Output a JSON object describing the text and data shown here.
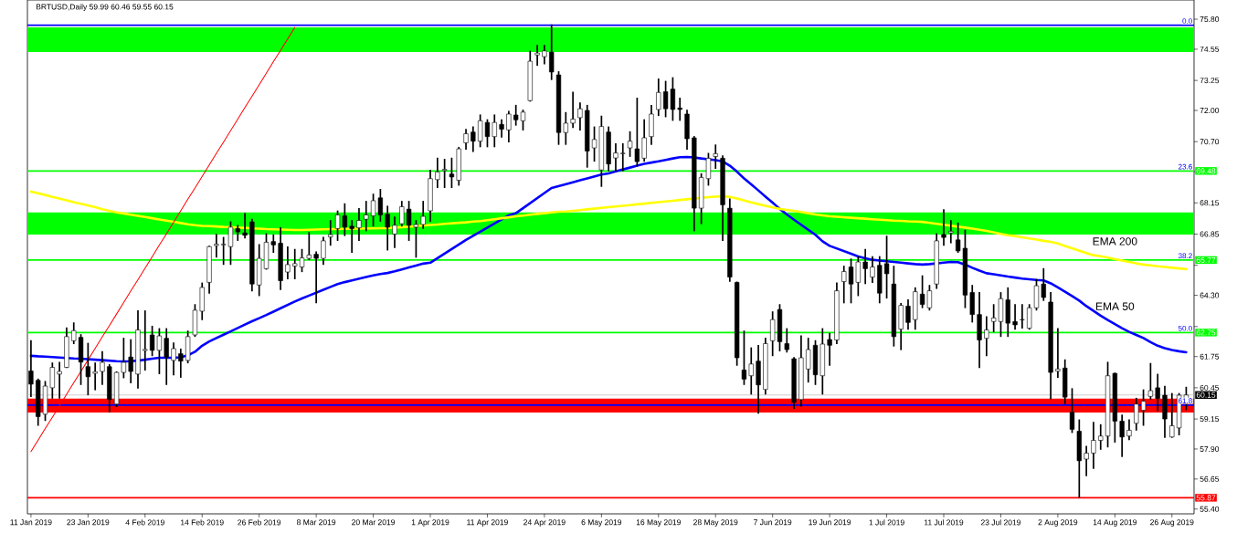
{
  "chart_data": {
    "type": "candlestick",
    "title": "BRTUSD,Daily  59.99 60.46 59.55 60.15",
    "categories": [
      "11 Jan 2019",
      null,
      null,
      null,
      null,
      null,
      null,
      null,
      "23 Jan 2019",
      null,
      null,
      null,
      null,
      null,
      null,
      null,
      "4 Feb 2019",
      null,
      null,
      null,
      null,
      null,
      null,
      null,
      "14 Feb 2019",
      null,
      null,
      null,
      null,
      null,
      null,
      null,
      "26 Feb 2019",
      null,
      null,
      null,
      null,
      null,
      null,
      null,
      "8 Mar 2019",
      null,
      null,
      null,
      null,
      null,
      null,
      null,
      "20 Mar 2019",
      null,
      null,
      null,
      null,
      null,
      null,
      null,
      "1 Apr 2019",
      null,
      null,
      null,
      null,
      null,
      null,
      null,
      "11 Apr 2019",
      null,
      null,
      null,
      null,
      null,
      null,
      null,
      "24 Apr 2019",
      null,
      null,
      null,
      null,
      null,
      null,
      null,
      "6 May 2019",
      null,
      null,
      null,
      null,
      null,
      null,
      null,
      "16 May 2019",
      null,
      null,
      null,
      null,
      null,
      null,
      null,
      "28 May 2019",
      null,
      null,
      null,
      null,
      null,
      null,
      null,
      "7 Jun 2019",
      null,
      null,
      null,
      null,
      null,
      null,
      null,
      "19 Jun 2019",
      null,
      null,
      null,
      null,
      null,
      null,
      null,
      "1 Jul 2019",
      null,
      null,
      null,
      null,
      null,
      null,
      null,
      "11 Jul 2019",
      null,
      null,
      null,
      null,
      null,
      null,
      null,
      "23 Jul 2019",
      null,
      null,
      null,
      null,
      null,
      null,
      null,
      "2 Aug 2019",
      null,
      null,
      null,
      null,
      null,
      null,
      null,
      "14 Aug 2019",
      null,
      null,
      null,
      null,
      null,
      null,
      null,
      "26 Aug 2019",
      null,
      null
    ],
    "ohlc": [
      [
        61.15,
        62.4,
        60.1,
        60.6
      ],
      [
        60.76,
        60.8,
        58.9,
        59.25
      ],
      [
        59.35,
        60.7,
        59.1,
        60.52
      ],
      [
        60.45,
        61.47,
        60.03,
        61.3
      ],
      [
        61.02,
        61.5,
        60.03,
        61.13
      ],
      [
        61.3,
        62.93,
        61.3,
        62.58
      ],
      [
        62.41,
        63.14,
        62.3,
        62.83
      ],
      [
        62.55,
        62.65,
        60.6,
        61.52
      ],
      [
        61.33,
        62.29,
        60.17,
        60.91
      ],
      [
        61.05,
        61.47,
        60.38,
        61.12
      ],
      [
        61.13,
        61.94,
        60.6,
        61.51
      ],
      [
        61.33,
        61.4,
        59.46,
        59.96
      ],
      [
        59.77,
        61.1,
        59.68,
        61.09
      ],
      [
        61.09,
        62.5,
        60.88,
        61.51
      ],
      [
        61.73,
        62.44,
        60.67,
        61.13
      ],
      [
        61.02,
        63.64,
        60.45,
        62.86
      ],
      [
        62.0,
        63.64,
        61.2,
        62.05
      ],
      [
        62.65,
        63.0,
        61.8,
        62.01
      ],
      [
        62.01,
        62.9,
        61.05,
        62.61
      ],
      [
        62.51,
        62.9,
        60.6,
        61.73
      ],
      [
        61.59,
        62.3,
        61.0,
        62.08
      ],
      [
        61.87,
        62.05,
        60.9,
        61.56
      ],
      [
        61.59,
        62.8,
        61.5,
        62.58
      ],
      [
        62.65,
        63.9,
        62.6,
        63.68
      ],
      [
        63.64,
        64.8,
        63.3,
        64.63
      ],
      [
        64.84,
        66.33,
        64.4,
        66.33
      ],
      [
        66.37,
        66.83,
        65.9,
        66.43
      ],
      [
        66.4,
        66.7,
        65.6,
        66.43
      ],
      [
        66.33,
        67.35,
        65.6,
        67.14
      ],
      [
        67.08,
        67.2,
        66.6,
        66.94
      ],
      [
        66.9,
        67.7,
        66.7,
        66.8
      ],
      [
        67.36,
        67.45,
        64.5,
        64.77
      ],
      [
        64.73,
        66.4,
        64.3,
        65.84
      ],
      [
        65.41,
        66.85,
        65.4,
        66.51
      ],
      [
        66.54,
        66.8,
        66.1,
        66.4
      ],
      [
        66.47,
        67.1,
        64.55,
        64.91
      ],
      [
        65.27,
        66.3,
        65.0,
        65.58
      ],
      [
        65.52,
        66.2,
        65.0,
        65.62
      ],
      [
        65.48,
        66.2,
        65.3,
        65.86
      ],
      [
        65.84,
        66.9,
        65.8,
        65.98
      ],
      [
        66.01,
        66.1,
        64.0,
        65.84
      ],
      [
        65.84,
        66.7,
        65.6,
        66.57
      ],
      [
        66.73,
        67.4,
        66.4,
        66.83
      ],
      [
        67.08,
        67.8,
        66.6,
        67.65
      ],
      [
        67.61,
        68.1,
        66.8,
        67.14
      ],
      [
        67.18,
        67.4,
        66.1,
        67.08
      ],
      [
        67.11,
        67.9,
        66.6,
        67.42
      ],
      [
        67.47,
        68.2,
        67.0,
        67.65
      ],
      [
        67.61,
        68.5,
        67.2,
        68.24
      ],
      [
        68.36,
        68.7,
        67.4,
        67.65
      ],
      [
        67.68,
        68.0,
        66.2,
        67.14
      ],
      [
        66.85,
        67.55,
        66.3,
        67.22
      ],
      [
        67.28,
        68.2,
        67.2,
        67.99
      ],
      [
        67.89,
        68.2,
        66.6,
        67.22
      ],
      [
        67.14,
        67.4,
        65.9,
        67.25
      ],
      [
        67.25,
        68.2,
        67.1,
        67.59
      ],
      [
        67.82,
        69.5,
        67.4,
        69.16
      ],
      [
        69.12,
        70.0,
        68.8,
        69.44
      ],
      [
        69.5,
        69.95,
        68.8,
        69.55
      ],
      [
        69.35,
        70.0,
        68.8,
        69.23
      ],
      [
        69.09,
        70.45,
        68.9,
        70.4
      ],
      [
        70.65,
        71.2,
        70.4,
        71.03
      ],
      [
        71.1,
        71.3,
        70.3,
        70.72
      ],
      [
        70.72,
        71.8,
        70.5,
        71.57
      ],
      [
        71.5,
        71.6,
        70.5,
        70.91
      ],
      [
        70.91,
        71.8,
        70.5,
        71.5
      ],
      [
        71.42,
        71.6,
        70.9,
        71.22
      ],
      [
        71.19,
        71.95,
        70.7,
        71.85
      ],
      [
        71.81,
        72.2,
        71.4,
        71.61
      ],
      [
        71.57,
        72.0,
        71.2,
        71.93
      ],
      [
        72.41,
        74.45,
        72.4,
        74.05
      ],
      [
        74.31,
        74.7,
        73.9,
        74.39
      ],
      [
        74.24,
        74.7,
        73.95,
        74.48
      ],
      [
        74.43,
        75.55,
        73.3,
        73.6
      ],
      [
        73.48,
        73.6,
        70.6,
        71.08
      ],
      [
        71.08,
        71.9,
        70.6,
        71.47
      ],
      [
        71.47,
        72.75,
        71.3,
        71.64
      ],
      [
        71.7,
        72.3,
        71.2,
        72.07
      ],
      [
        72.0,
        72.2,
        69.65,
        70.31
      ],
      [
        70.44,
        71.3,
        69.9,
        70.79
      ],
      [
        69.52,
        71.75,
        68.85,
        71.33
      ],
      [
        71.1,
        71.3,
        69.5,
        69.77
      ],
      [
        70.02,
        70.6,
        69.5,
        70.23
      ],
      [
        70.2,
        70.6,
        69.5,
        70.22
      ],
      [
        70.44,
        71.1,
        70.1,
        70.72
      ],
      [
        70.4,
        72.5,
        69.7,
        69.87
      ],
      [
        70.01,
        71.6,
        69.9,
        70.86
      ],
      [
        70.91,
        72.2,
        70.6,
        71.85
      ],
      [
        72.04,
        73.3,
        71.8,
        72.75
      ],
      [
        72.78,
        73.2,
        71.75,
        72.07
      ],
      [
        72.89,
        73.35,
        71.6,
        72.04
      ],
      [
        72.1,
        72.5,
        71.6,
        72.04
      ],
      [
        71.85,
        72.0,
        70.4,
        70.82
      ],
      [
        70.86,
        70.9,
        67.0,
        67.93
      ],
      [
        67.93,
        69.35,
        67.3,
        69.21
      ],
      [
        69.16,
        70.2,
        68.9,
        70.01
      ],
      [
        70.08,
        70.55,
        69.6,
        70.2
      ],
      [
        70.01,
        70.1,
        66.6,
        68.07
      ],
      [
        67.93,
        68.3,
        64.9,
        65.06
      ],
      [
        64.84,
        64.84,
        61.4,
        61.7
      ],
      [
        61.19,
        62.8,
        60.6,
        60.81
      ],
      [
        60.95,
        62.1,
        60.2,
        61.44
      ],
      [
        61.56,
        62.2,
        59.4,
        60.57
      ],
      [
        60.38,
        62.5,
        60.2,
        62.29
      ],
      [
        62.41,
        63.6,
        61.8,
        63.29
      ],
      [
        63.71,
        63.9,
        62.0,
        62.37
      ],
      [
        62.29,
        62.9,
        61.95,
        62.04
      ],
      [
        61.66,
        61.7,
        59.6,
        59.84
      ],
      [
        59.96,
        62.6,
        59.7,
        61.7
      ],
      [
        61.23,
        62.5,
        60.7,
        62.04
      ],
      [
        62.22,
        62.4,
        60.6,
        60.99
      ],
      [
        60.95,
        62.9,
        60.2,
        62.27
      ],
      [
        62.46,
        62.7,
        61.4,
        62.22
      ],
      [
        62.44,
        64.8,
        62.3,
        64.49
      ],
      [
        64.87,
        65.5,
        64.0,
        65.29
      ],
      [
        65.48,
        65.8,
        64.0,
        64.77
      ],
      [
        64.84,
        65.9,
        64.3,
        65.69
      ],
      [
        65.69,
        66.2,
        64.8,
        65.41
      ],
      [
        65.06,
        65.9,
        64.85,
        65.48
      ],
      [
        65.55,
        65.9,
        64.0,
        64.39
      ],
      [
        65.62,
        66.75,
        64.2,
        65.2
      ],
      [
        64.77,
        65.5,
        62.2,
        62.58
      ],
      [
        62.89,
        63.95,
        62.05,
        63.88
      ],
      [
        63.85,
        64.1,
        62.9,
        63.17
      ],
      [
        63.29,
        64.6,
        62.9,
        64.45
      ],
      [
        64.35,
        65.1,
        63.8,
        63.92
      ],
      [
        63.78,
        64.7,
        63.7,
        64.49
      ],
      [
        64.77,
        66.85,
        64.6,
        66.57
      ],
      [
        66.83,
        67.85,
        66.4,
        66.71
      ],
      [
        66.9,
        67.4,
        66.5,
        66.97
      ],
      [
        66.61,
        67.3,
        66.1,
        66.15
      ],
      [
        66.26,
        67.0,
        63.8,
        64.31
      ],
      [
        64.42,
        64.7,
        63.2,
        63.5
      ],
      [
        63.5,
        64.4,
        61.3,
        62.44
      ],
      [
        62.51,
        63.4,
        61.8,
        62.86
      ],
      [
        63.21,
        63.9,
        62.8,
        63.36
      ],
      [
        63.21,
        64.4,
        62.6,
        64.16
      ],
      [
        64.11,
        64.6,
        62.6,
        63.14
      ],
      [
        63.21,
        63.9,
        62.9,
        63.07
      ],
      [
        63.28,
        63.9,
        62.95,
        63.29
      ],
      [
        62.93,
        63.9,
        62.9,
        63.78
      ],
      [
        63.78,
        64.95,
        63.7,
        64.7
      ],
      [
        64.77,
        65.4,
        64.1,
        64.21
      ],
      [
        64.02,
        64.4,
        60.0,
        61.09
      ],
      [
        61.14,
        62.9,
        60.9,
        61.23
      ],
      [
        61.27,
        61.6,
        59.8,
        60.06
      ],
      [
        59.43,
        60.4,
        58.6,
        58.72
      ],
      [
        58.64,
        59.1,
        55.9,
        57.41
      ],
      [
        57.48,
        58.0,
        56.8,
        57.73
      ],
      [
        57.73,
        59.0,
        57.1,
        58.26
      ],
      [
        58.26,
        58.9,
        57.9,
        58.44
      ],
      [
        58.44,
        61.5,
        58.0,
        60.95
      ],
      [
        61.05,
        61.05,
        58.2,
        59.06
      ],
      [
        59.06,
        59.3,
        57.6,
        58.4
      ],
      [
        58.44,
        59.1,
        58.3,
        58.68
      ],
      [
        58.97,
        60.0,
        58.7,
        59.77
      ],
      [
        59.51,
        60.35,
        58.9,
        59.89
      ],
      [
        60.09,
        61.45,
        60.0,
        60.33
      ],
      [
        60.45,
        61.0,
        59.5,
        60.0
      ],
      [
        60.14,
        60.5,
        58.4,
        59.15
      ],
      [
        58.4,
        60.2,
        58.4,
        58.87
      ],
      [
        58.78,
        60.2,
        58.5,
        60.14
      ],
      [
        59.99,
        60.46,
        59.55,
        60.15
      ]
    ],
    "series": [
      {
        "type": "line",
        "name": "EMA 50",
        "color": "#0000ff",
        "values": [
          61.78,
          61.76,
          61.75,
          61.73,
          61.71,
          61.69,
          61.67,
          61.66,
          61.64,
          61.62,
          61.6,
          61.58,
          61.56,
          61.55,
          61.56,
          61.58,
          61.62,
          61.66,
          61.7,
          61.7,
          61.7,
          61.72,
          61.8,
          61.95,
          62.2,
          62.38,
          62.52,
          62.66,
          62.8,
          62.94,
          63.08,
          63.22,
          63.35,
          63.48,
          63.62,
          63.76,
          63.9,
          64.04,
          64.17,
          64.29,
          64.41,
          64.53,
          64.65,
          64.77,
          64.85,
          64.92,
          64.99,
          65.06,
          65.13,
          65.19,
          65.23,
          65.3,
          65.38,
          65.46,
          65.54,
          65.62,
          65.66,
          65.85,
          66.04,
          66.23,
          66.42,
          66.61,
          66.78,
          66.95,
          67.12,
          67.29,
          67.46,
          67.63,
          67.72,
          67.93,
          68.14,
          68.35,
          68.56,
          68.77,
          68.85,
          68.93,
          69.01,
          69.09,
          69.17,
          69.25,
          69.33,
          69.38,
          69.46,
          69.54,
          69.62,
          69.7,
          69.78,
          69.83,
          69.88,
          69.94,
          70.0,
          70.05,
          70.06,
          70.04,
          70.0,
          69.97,
          69.93,
          69.88,
          69.7,
          69.45,
          69.17,
          68.92,
          68.67,
          68.41,
          68.16,
          67.9,
          67.67,
          67.45,
          67.24,
          67.03,
          66.82,
          66.55,
          66.36,
          66.25,
          66.14,
          66.03,
          65.92,
          65.84,
          65.78,
          65.75,
          65.72,
          65.69,
          65.66,
          65.63,
          65.6,
          65.58,
          65.6,
          65.63,
          65.66,
          65.69,
          65.68,
          65.58,
          65.45,
          65.33,
          65.22,
          65.18,
          65.13,
          65.08,
          65.04,
          65.0,
          64.97,
          64.94,
          64.92,
          64.8,
          64.63,
          64.45,
          64.27,
          64.08,
          63.85,
          63.65,
          63.45,
          63.27,
          63.1,
          62.93,
          62.78,
          62.65,
          62.52,
          62.35,
          62.2,
          62.1,
          62.02,
          61.97,
          61.93
        ]
      },
      {
        "type": "line",
        "name": "EMA 200",
        "color": "#ffff00",
        "values": [
          68.62,
          68.55,
          68.48,
          68.4,
          68.33,
          68.26,
          68.18,
          68.11,
          68.04,
          67.97,
          67.89,
          67.82,
          67.75,
          67.71,
          67.66,
          67.61,
          67.56,
          67.51,
          67.46,
          67.41,
          67.36,
          67.31,
          67.26,
          67.22,
          67.19,
          67.18,
          67.17,
          67.15,
          67.14,
          67.12,
          67.11,
          67.09,
          67.08,
          67.06,
          67.05,
          67.04,
          67.03,
          67.02,
          67.02,
          67.03,
          67.04,
          67.05,
          67.06,
          67.06,
          67.07,
          67.08,
          67.08,
          67.09,
          67.09,
          67.1,
          67.1,
          67.12,
          67.14,
          67.16,
          67.18,
          67.21,
          67.23,
          67.25,
          67.28,
          67.3,
          67.32,
          67.34,
          67.37,
          67.39,
          67.43,
          67.47,
          67.51,
          67.55,
          67.59,
          67.62,
          67.66,
          67.69,
          67.72,
          67.75,
          67.78,
          67.79,
          67.82,
          67.85,
          67.88,
          67.91,
          67.94,
          67.97,
          68.0,
          68.03,
          68.06,
          68.09,
          68.12,
          68.15,
          68.18,
          68.21,
          68.24,
          68.27,
          68.3,
          68.33,
          68.36,
          68.39,
          68.41,
          68.43,
          68.4,
          68.33,
          68.25,
          68.17,
          68.1,
          68.03,
          67.96,
          67.9,
          67.86,
          67.82,
          67.77,
          67.72,
          67.67,
          67.63,
          67.59,
          67.57,
          67.55,
          67.53,
          67.51,
          67.49,
          67.47,
          67.45,
          67.43,
          67.41,
          67.4,
          67.38,
          67.37,
          67.36,
          67.32,
          67.28,
          67.24,
          67.2,
          67.16,
          67.12,
          67.08,
          67.03,
          66.98,
          66.92,
          66.86,
          66.8,
          66.77,
          66.72,
          66.67,
          66.62,
          66.57,
          66.53,
          66.46,
          66.36,
          66.26,
          66.16,
          66.06,
          65.97,
          65.93,
          65.87,
          65.81,
          65.75,
          65.69,
          65.63,
          65.58,
          65.55,
          65.51,
          65.48,
          65.45,
          65.42,
          65.39
        ]
      },
      {
        "type": "line",
        "color": "#ff0000",
        "values": [
          57.79,
          58.27,
          58.75,
          59.22,
          59.7,
          60.18,
          60.66,
          61.13,
          61.61,
          62.09,
          62.57,
          63.04,
          63.52,
          64.0,
          64.48,
          64.95,
          65.43,
          65.91,
          66.39,
          66.86,
          67.34,
          67.82,
          68.3,
          68.77,
          69.25,
          69.73,
          70.21,
          70.68,
          71.16,
          71.64,
          72.12,
          72.59,
          73.07,
          73.55,
          74.03,
          74.5,
          74.98,
          75.46,
          null,
          null,
          null,
          null,
          null,
          null,
          null,
          null,
          null,
          null,
          null,
          null,
          null,
          null,
          null,
          null,
          null,
          null,
          null,
          null,
          null,
          null,
          null,
          null,
          null,
          null,
          null,
          null,
          null,
          null,
          null,
          null,
          null,
          null,
          null,
          null,
          null,
          null,
          null,
          null,
          null,
          null,
          null,
          null,
          null,
          null,
          null,
          null,
          null,
          null,
          null,
          null,
          null,
          null,
          null,
          null,
          null,
          null,
          null,
          null,
          null,
          null,
          null,
          null,
          null,
          null,
          null,
          null,
          null,
          null,
          null,
          null,
          null,
          null,
          null,
          null,
          null,
          null,
          null,
          null,
          null,
          null,
          null,
          null,
          null,
          null,
          null,
          null,
          null,
          null,
          null,
          null,
          null,
          null,
          null,
          null,
          null,
          null,
          null,
          null,
          null,
          null,
          null,
          null,
          null,
          null,
          null,
          null,
          null,
          null,
          null,
          null,
          null,
          null,
          null,
          null,
          null,
          null,
          null,
          null,
          null,
          null,
          null,
          null,
          null
        ]
      }
    ],
    "bands": [
      {
        "axis": "y",
        "from": 74.43,
        "to": 75.46,
        "color": "#00ff00"
      },
      {
        "axis": "y",
        "from": 66.83,
        "to": 67.75,
        "color": "#00ff00"
      },
      {
        "axis": "y",
        "from": 59.42,
        "to": 60.0,
        "color": "#ff0000"
      }
    ],
    "ref_lines": [
      {
        "axis": "y",
        "value": 75.55,
        "color": "#0000ff"
      },
      {
        "axis": "y",
        "value": 69.48,
        "label": "69.48",
        "color": "#00ff00"
      },
      {
        "axis": "y",
        "value": 65.77,
        "label": "65.77",
        "color": "#00ff00"
      },
      {
        "axis": "y",
        "value": 62.75,
        "label": "62.75",
        "color": "#00ff00"
      },
      {
        "axis": "y",
        "value": 59.73,
        "color": "#0000ff"
      },
      {
        "axis": "y",
        "value": 60.15,
        "label": "60.15",
        "color": "#c0c0c0"
      },
      {
        "axis": "y",
        "value": 55.87,
        "label": "55.87",
        "color": "#ff0000"
      }
    ],
    "annotations": [
      {
        "text": "0.0",
        "y": 75.55
      },
      {
        "text": "23.6",
        "y": 69.48
      },
      {
        "text": "38.2",
        "y": 65.77
      },
      {
        "text": "50.0",
        "y": 62.75
      },
      {
        "text": "61.8",
        "y": 59.73
      }
    ],
    "ylim": [
      55.2,
      76.6
    ],
    "yticks": [
      {
        "value": 75.8,
        "label": "75.80"
      },
      {
        "value": 74.55,
        "label": "74.55"
      },
      {
        "value": 73.25,
        "label": "73.25"
      },
      {
        "value": 72.0,
        "label": "72.00"
      },
      {
        "value": 70.7,
        "label": "70.70"
      },
      {
        "value": 69.45,
        "label": null
      },
      {
        "value": 68.15,
        "label": "68.15"
      },
      {
        "value": 66.85,
        "label": "66.85"
      },
      {
        "value": 65.55,
        "label": null
      },
      {
        "value": 64.3,
        "label": "64.30"
      },
      {
        "value": 63.0,
        "label": null
      },
      {
        "value": 61.75,
        "label": "61.75"
      },
      {
        "value": 60.45,
        "label": "60.45"
      },
      {
        "value": 59.15,
        "label": "59.15"
      },
      {
        "value": 57.9,
        "label": "57.90"
      },
      {
        "value": 56.65,
        "label": "56.65"
      },
      {
        "value": 55.4,
        "label": "55.40"
      }
    ]
  }
}
